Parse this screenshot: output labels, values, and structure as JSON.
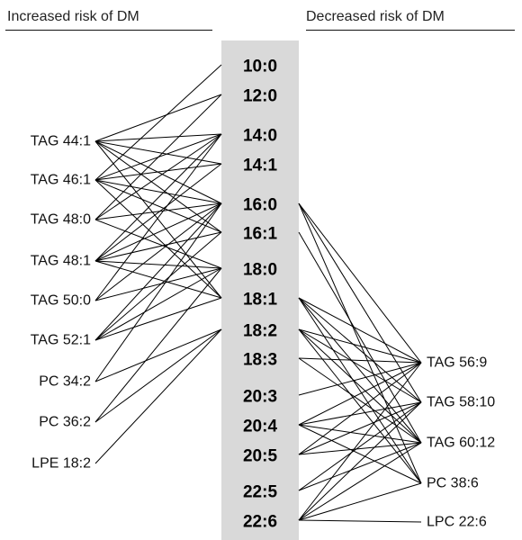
{
  "headings": {
    "left": "Increased risk of DM",
    "right": "Decreased risk of DM"
  },
  "colors": {
    "center_bar": "#d9d9d9",
    "lines": "#000000"
  },
  "fatty_acids": [
    "10:0",
    "12:0",
    "14:0",
    "14:1",
    "16:0",
    "16:1",
    "18:0",
    "18:1",
    "18:2",
    "18:3",
    "20:3",
    "20:4",
    "20:5",
    "22:5",
    "22:6"
  ],
  "left_lipids": [
    "TAG 44:1",
    "TAG 46:1",
    "TAG 48:0",
    "TAG 48:1",
    "TAG 50:0",
    "TAG 52:1",
    "PC 34:2",
    "PC 36:2",
    "LPE 18:2"
  ],
  "right_lipids": [
    "TAG 56:9",
    "TAG 58:10",
    "TAG 60:12",
    "PC 38:6",
    "LPC 22:6"
  ],
  "left_links": [
    {
      "lipid": "TAG 44:1",
      "fa": "12:0"
    },
    {
      "lipid": "TAG 44:1",
      "fa": "14:0"
    },
    {
      "lipid": "TAG 44:1",
      "fa": "14:1"
    },
    {
      "lipid": "TAG 44:1",
      "fa": "16:0"
    },
    {
      "lipid": "TAG 44:1",
      "fa": "16:1"
    },
    {
      "lipid": "TAG 44:1",
      "fa": "18:1"
    },
    {
      "lipid": "TAG 46:1",
      "fa": "10:0"
    },
    {
      "lipid": "TAG 46:1",
      "fa": "14:0"
    },
    {
      "lipid": "TAG 46:1",
      "fa": "14:1"
    },
    {
      "lipid": "TAG 46:1",
      "fa": "16:0"
    },
    {
      "lipid": "TAG 46:1",
      "fa": "16:1"
    },
    {
      "lipid": "TAG 46:1",
      "fa": "18:1"
    },
    {
      "lipid": "TAG 48:0",
      "fa": "12:0"
    },
    {
      "lipid": "TAG 48:0",
      "fa": "14:0"
    },
    {
      "lipid": "TAG 48:0",
      "fa": "16:0"
    },
    {
      "lipid": "TAG 48:0",
      "fa": "18:0"
    },
    {
      "lipid": "TAG 48:1",
      "fa": "14:0"
    },
    {
      "lipid": "TAG 48:1",
      "fa": "14:1"
    },
    {
      "lipid": "TAG 48:1",
      "fa": "16:0"
    },
    {
      "lipid": "TAG 48:1",
      "fa": "16:1"
    },
    {
      "lipid": "TAG 48:1",
      "fa": "18:0"
    },
    {
      "lipid": "TAG 48:1",
      "fa": "18:1"
    },
    {
      "lipid": "TAG 50:0",
      "fa": "14:0"
    },
    {
      "lipid": "TAG 50:0",
      "fa": "16:0"
    },
    {
      "lipid": "TAG 50:0",
      "fa": "18:0"
    },
    {
      "lipid": "TAG 52:1",
      "fa": "16:0"
    },
    {
      "lipid": "TAG 52:1",
      "fa": "16:1"
    },
    {
      "lipid": "TAG 52:1",
      "fa": "18:0"
    },
    {
      "lipid": "TAG 52:1",
      "fa": "18:1"
    },
    {
      "lipid": "PC 34:2",
      "fa": "16:0"
    },
    {
      "lipid": "PC 34:2",
      "fa": "18:2"
    },
    {
      "lipid": "PC 36:2",
      "fa": "18:0"
    },
    {
      "lipid": "PC 36:2",
      "fa": "18:2"
    },
    {
      "lipid": "LPE 18:2",
      "fa": "18:2"
    }
  ],
  "right_links": [
    {
      "fa": "16:0",
      "lipid": "TAG 56:9"
    },
    {
      "fa": "16:0",
      "lipid": "TAG 58:10"
    },
    {
      "fa": "16:0",
      "lipid": "PC 38:6"
    },
    {
      "fa": "16:1",
      "lipid": "TAG 60:12"
    },
    {
      "fa": "18:1",
      "lipid": "TAG 56:9"
    },
    {
      "fa": "18:1",
      "lipid": "TAG 58:10"
    },
    {
      "fa": "18:1",
      "lipid": "TAG 60:12"
    },
    {
      "fa": "18:1",
      "lipid": "PC 38:6"
    },
    {
      "fa": "18:2",
      "lipid": "TAG 56:9"
    },
    {
      "fa": "18:2",
      "lipid": "TAG 58:10"
    },
    {
      "fa": "18:2",
      "lipid": "TAG 60:12"
    },
    {
      "fa": "18:2",
      "lipid": "PC 38:6"
    },
    {
      "fa": "18:3",
      "lipid": "TAG 56:9"
    },
    {
      "fa": "18:3",
      "lipid": "TAG 60:12"
    },
    {
      "fa": "20:3",
      "lipid": "TAG 56:9"
    },
    {
      "fa": "20:4",
      "lipid": "TAG 56:9"
    },
    {
      "fa": "20:4",
      "lipid": "TAG 58:10"
    },
    {
      "fa": "20:4",
      "lipid": "TAG 60:12"
    },
    {
      "fa": "20:4",
      "lipid": "PC 38:6"
    },
    {
      "fa": "20:5",
      "lipid": "TAG 56:9"
    },
    {
      "fa": "20:5",
      "lipid": "TAG 58:10"
    },
    {
      "fa": "20:5",
      "lipid": "TAG 60:12"
    },
    {
      "fa": "22:5",
      "lipid": "TAG 58:10"
    },
    {
      "fa": "22:5",
      "lipid": "TAG 60:12"
    },
    {
      "fa": "22:6",
      "lipid": "TAG 56:9"
    },
    {
      "fa": "22:6",
      "lipid": "TAG 58:10"
    },
    {
      "fa": "22:6",
      "lipid": "TAG 60:12"
    },
    {
      "fa": "22:6",
      "lipid": "PC 38:6"
    },
    {
      "fa": "22:6",
      "lipid": "LPC 22:6"
    }
  ]
}
